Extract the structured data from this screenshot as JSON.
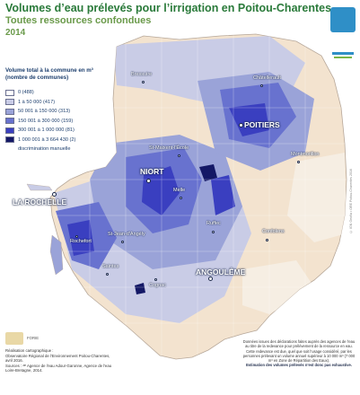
{
  "header": {
    "title": "Volumes d’eau prélevés pour l’irrigation en Poitou-Charentes",
    "subtitle": "Toutes ressources confondues",
    "year": "2014"
  },
  "legend": {
    "title": "Volume total à la commune en m³ (nombre de communes)",
    "items": [
      {
        "label": "0 (488)",
        "color": "#ffffff"
      },
      {
        "label": "1 à 50 000 (417)",
        "color": "#c9cce6"
      },
      {
        "label": "50 001 à 150 000 (313)",
        "color": "#9aa3d8"
      },
      {
        "label": "150 001 à 300 000 (159)",
        "color": "#6872cf"
      },
      {
        "label": "300 001 à 1 000 000 (81)",
        "color": "#3a3fc0"
      },
      {
        "label": "1 000 001 à 3 664 430 (2)",
        "color": "#141866"
      },
      {
        "label": "discrimination manuelle",
        "color": ""
      }
    ]
  },
  "cities": {
    "la_rochelle": "LA ROCHELLE",
    "niort": "NIORT",
    "poitiers": "POITIERS",
    "angouleme": "ANGOULÊME",
    "bressuire": "Bressuire",
    "chatellerault": "Châtellerault",
    "saint_maixent": "St-Maixent-l'École",
    "melle": "Melle",
    "montmorillon": "Montmorillon",
    "rochefort": "Rochefort",
    "saint_jean": "St-Jean-d'Angély",
    "ruffec": "Ruffec",
    "confolens": "Confolens",
    "saintes": "Saintes",
    "cognac": "Cognac"
  },
  "credits": {
    "producer_label": "Réalisation cartographique :",
    "producer": "Observatoire Régional de l'Environnement Poitou-Charentes, avril 2016.",
    "sources": "Sources : ᴬᴱ Agence de l'eau Adour-Garonne, Agence de l'eau Loire-Bretagne, 2014.",
    "logo_label": "FORIE",
    "side_credit": "© IGN Geofla • ORE Poitou-Charentes 2016"
  },
  "notes": {
    "text": "Données issues des déclarations faites auprès des agences de l’eau au titre de la redevance pour prélèvement de la ressource en eau. Cette redevance est due, quel que soit l’usage considéré, par les personnes prélevant un volume annuel supérieur à 10 000 m³ (7 000 m³ en Zone de Répartition des Eaux).",
    "bold": "Estimation des volumes prélevés n’est donc pas exhaustive."
  },
  "colors": {
    "land": "#f3e3cf",
    "water": "#ffffff",
    "class1": "#c9cce6",
    "class2": "#9aa3d8",
    "class3": "#6872cf",
    "class4": "#3a3fc0",
    "class5": "#141866",
    "title_green": "#2a7a3a"
  }
}
